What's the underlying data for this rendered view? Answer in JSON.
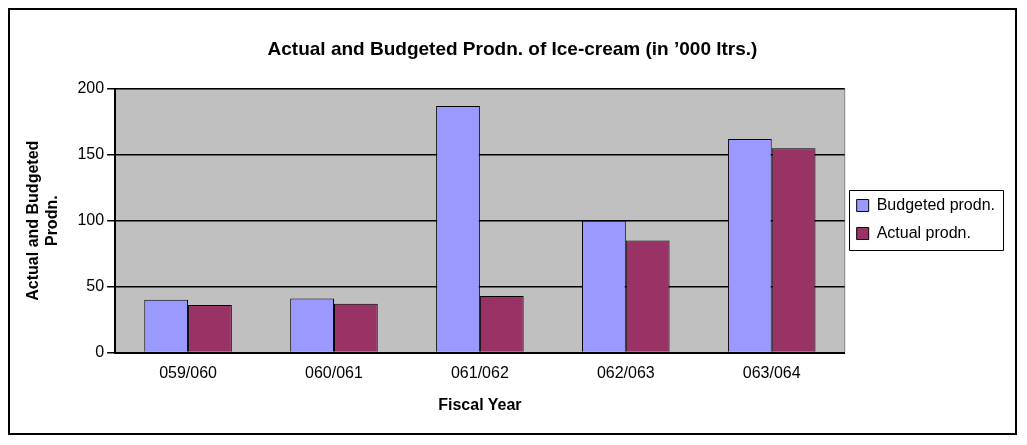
{
  "chart_data": {
    "type": "bar",
    "title": "Actual and Budgeted Prodn. of Ice-cream (in ’000 ltrs.)",
    "xlabel": "Fiscal Year",
    "ylabel": "Actual and Budgeted Prodn.",
    "categories": [
      "059/060",
      "060/061",
      "061/062",
      "062/063",
      "063/064"
    ],
    "series": [
      {
        "name": "Budgeted prodn.",
        "color": "#9999ff",
        "values": [
          40,
          41,
          187,
          100,
          162
        ]
      },
      {
        "name": "Actual prodn.",
        "color": "#993366",
        "values": [
          36,
          37,
          43,
          85,
          155
        ]
      }
    ],
    "ylim": [
      0,
      200
    ],
    "yticks": [
      0,
      50,
      100,
      150,
      200
    ],
    "grid": "y",
    "legend": "right"
  }
}
